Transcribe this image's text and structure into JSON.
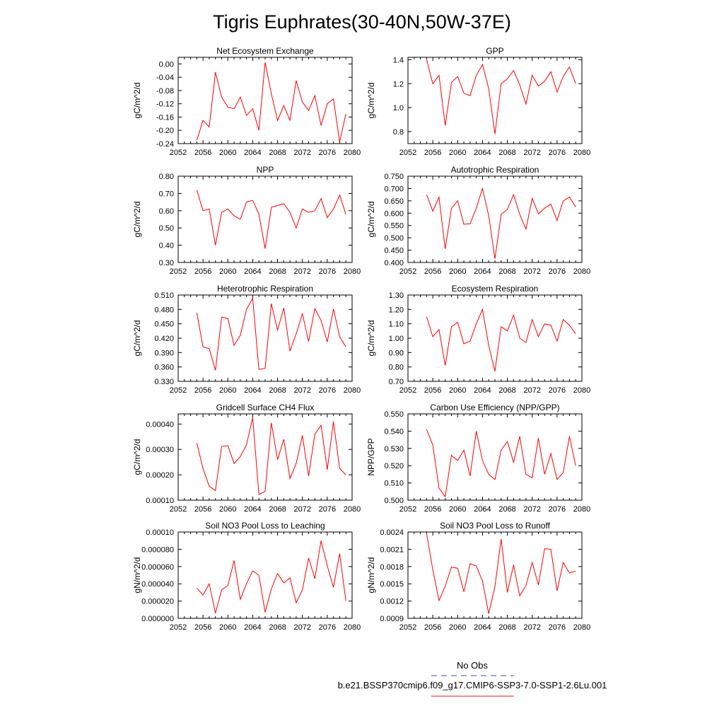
{
  "page_title": "Tigris Euphrates(30-40N,50W-37E)",
  "legend": {
    "entries": [
      {
        "label": "No Obs",
        "color": "#4444cc",
        "style": "dashed"
      },
      {
        "label": "b.e21.BSSP370cmip6.f09_g17.CMIP6-SSP3-7.0-SSP1-2.6Lu.001",
        "color": "#e02020",
        "style": "solid"
      }
    ]
  },
  "series_color": "#ff0000",
  "chart_data": [
    {
      "type": "line",
      "title": "Net Ecosystem Exchange",
      "ylabel": "gC/m^2/d",
      "xlim": [
        2052,
        2080
      ],
      "ylim": [
        -0.24,
        0.02
      ],
      "x_ticks": [
        "2052",
        "2056",
        "2060",
        "2064",
        "2068",
        "2072",
        "2076",
        "2080"
      ],
      "y_ticks": [
        "0.00",
        "-0.04",
        "-0.08",
        "-0.12",
        "-0.16",
        "-0.20",
        "-0.24"
      ],
      "x": [
        2055,
        2056,
        2057,
        2058,
        2059,
        2060,
        2061,
        2062,
        2063,
        2064,
        2065,
        2066,
        2067,
        2068,
        2069,
        2070,
        2071,
        2072,
        2073,
        2074,
        2075,
        2076,
        2077,
        2078,
        2079
      ],
      "y": [
        -0.23,
        -0.17,
        -0.19,
        -0.025,
        -0.1,
        -0.13,
        -0.135,
        -0.1,
        -0.155,
        -0.135,
        -0.2,
        0.005,
        -0.09,
        -0.17,
        -0.125,
        -0.17,
        -0.05,
        -0.115,
        -0.14,
        -0.095,
        -0.185,
        -0.12,
        -0.105,
        -0.235,
        -0.15
      ]
    },
    {
      "type": "line",
      "title": "GPP",
      "ylabel": "gC/m^2/d",
      "xlim": [
        2052,
        2080
      ],
      "ylim": [
        0.7,
        1.42
      ],
      "x_ticks": [
        "2052",
        "2056",
        "2060",
        "2064",
        "2068",
        "2072",
        "2076",
        "2080"
      ],
      "y_ticks": [
        "1.4",
        "1.2",
        "1.0",
        "0.8"
      ],
      "x": [
        2055,
        2056,
        2057,
        2058,
        2059,
        2060,
        2061,
        2062,
        2063,
        2064,
        2065,
        2066,
        2067,
        2068,
        2069,
        2070,
        2071,
        2072,
        2073,
        2074,
        2075,
        2076,
        2077,
        2078,
        2079
      ],
      "y": [
        1.4,
        1.2,
        1.27,
        0.85,
        1.21,
        1.26,
        1.12,
        1.1,
        1.27,
        1.36,
        1.16,
        0.78,
        1.2,
        1.24,
        1.31,
        1.19,
        1.03,
        1.27,
        1.18,
        1.22,
        1.3,
        1.13,
        1.26,
        1.34,
        1.2
      ]
    },
    {
      "type": "line",
      "title": "NPP",
      "ylabel": "gC/m^2/d",
      "xlim": [
        2052,
        2080
      ],
      "ylim": [
        0.3,
        0.8
      ],
      "x_ticks": [
        "2052",
        "2056",
        "2060",
        "2064",
        "2068",
        "2072",
        "2076",
        "2080"
      ],
      "y_ticks": [
        "0.80",
        "0.70",
        "0.60",
        "0.50",
        "0.40",
        "0.30"
      ],
      "x": [
        2055,
        2056,
        2057,
        2058,
        2059,
        2060,
        2061,
        2062,
        2063,
        2064,
        2065,
        2066,
        2067,
        2068,
        2069,
        2070,
        2071,
        2072,
        2073,
        2074,
        2075,
        2076,
        2077,
        2078,
        2079
      ],
      "y": [
        0.72,
        0.6,
        0.61,
        0.4,
        0.59,
        0.61,
        0.57,
        0.55,
        0.65,
        0.66,
        0.58,
        0.38,
        0.62,
        0.63,
        0.64,
        0.59,
        0.5,
        0.61,
        0.59,
        0.6,
        0.67,
        0.56,
        0.61,
        0.69,
        0.58
      ]
    },
    {
      "type": "line",
      "title": "Autotrophic Respiration",
      "ylabel": "gC/m^2/d",
      "xlim": [
        2052,
        2080
      ],
      "ylim": [
        0.4,
        0.75
      ],
      "x_ticks": [
        "2052",
        "2056",
        "2060",
        "2064",
        "2068",
        "2072",
        "2076",
        "2080"
      ],
      "y_ticks": [
        "0.750",
        "0.700",
        "0.650",
        "0.600",
        "0.550",
        "0.500",
        "0.450",
        "0.400"
      ],
      "x": [
        2055,
        2056,
        2057,
        2058,
        2059,
        2060,
        2061,
        2062,
        2063,
        2064,
        2065,
        2066,
        2067,
        2068,
        2069,
        2070,
        2071,
        2072,
        2073,
        2074,
        2075,
        2076,
        2077,
        2078,
        2079
      ],
      "y": [
        0.675,
        0.608,
        0.665,
        0.455,
        0.62,
        0.65,
        0.555,
        0.557,
        0.62,
        0.7,
        0.59,
        0.415,
        0.595,
        0.615,
        0.675,
        0.595,
        0.535,
        0.66,
        0.597,
        0.62,
        0.637,
        0.57,
        0.65,
        0.665,
        0.625
      ]
    },
    {
      "type": "line",
      "title": "Heterotrophic Respiration",
      "ylabel": "gC/m^2/d",
      "xlim": [
        2052,
        2080
      ],
      "ylim": [
        0.33,
        0.51
      ],
      "x_ticks": [
        "2052",
        "2056",
        "2060",
        "2064",
        "2068",
        "2072",
        "2076",
        "2080"
      ],
      "y_ticks": [
        "0.510",
        "0.480",
        "0.450",
        "0.420",
        "0.390",
        "0.360",
        "0.330"
      ],
      "x": [
        2055,
        2056,
        2057,
        2058,
        2059,
        2060,
        2061,
        2062,
        2063,
        2064,
        2065,
        2066,
        2067,
        2068,
        2069,
        2070,
        2071,
        2072,
        2073,
        2074,
        2075,
        2076,
        2077,
        2078,
        2079
      ],
      "y": [
        0.473,
        0.402,
        0.398,
        0.353,
        0.464,
        0.461,
        0.405,
        0.426,
        0.48,
        0.503,
        0.355,
        0.357,
        0.492,
        0.437,
        0.483,
        0.393,
        0.429,
        0.471,
        0.413,
        0.482,
        0.457,
        0.412,
        0.481,
        0.423,
        0.402
      ]
    },
    {
      "type": "line",
      "title": "Ecosystem Respiration",
      "ylabel": "gC/m^2/d",
      "xlim": [
        2052,
        2080
      ],
      "ylim": [
        0.7,
        1.3
      ],
      "x_ticks": [
        "2052",
        "2056",
        "2060",
        "2064",
        "2068",
        "2072",
        "2076",
        "2080"
      ],
      "y_ticks": [
        "1.30",
        "1.20",
        "1.10",
        "1.00",
        "0.90",
        "0.80",
        "0.70"
      ],
      "x": [
        2055,
        2056,
        2057,
        2058,
        2059,
        2060,
        2061,
        2062,
        2063,
        2064,
        2065,
        2066,
        2067,
        2068,
        2069,
        2070,
        2071,
        2072,
        2073,
        2074,
        2075,
        2076,
        2077,
        2078,
        2079
      ],
      "y": [
        1.15,
        1.01,
        1.06,
        0.81,
        1.08,
        1.11,
        0.96,
        0.98,
        1.1,
        1.2,
        0.95,
        0.77,
        1.08,
        1.05,
        1.16,
        1.0,
        0.97,
        1.13,
        1.01,
        1.1,
        1.09,
        0.98,
        1.13,
        1.09,
        1.03
      ]
    },
    {
      "type": "line",
      "title": "Gridcell Surface CH4 Flux",
      "ylabel": "gC/m^2/d",
      "xlim": [
        2052,
        2080
      ],
      "ylim": [
        0.0001,
        0.00044
      ],
      "x_ticks": [
        "2052",
        "2056",
        "2060",
        "2064",
        "2068",
        "2072",
        "2076",
        "2080"
      ],
      "y_ticks": [
        "0.00040",
        "0.00030",
        "0.00020",
        "0.00010"
      ],
      "x": [
        2055,
        2056,
        2057,
        2058,
        2059,
        2060,
        2061,
        2062,
        2063,
        2064,
        2065,
        2066,
        2067,
        2068,
        2069,
        2070,
        2071,
        2072,
        2073,
        2074,
        2075,
        2076,
        2077,
        2078,
        2079
      ],
      "y": [
        0.000325,
        0.000225,
        0.000155,
        0.000138,
        0.000312,
        0.000315,
        0.000245,
        0.000272,
        0.000318,
        0.000425,
        0.000122,
        0.000135,
        0.000405,
        0.00026,
        0.00034,
        0.000185,
        0.000245,
        0.000355,
        0.000195,
        0.00036,
        0.000395,
        0.00022,
        0.00041,
        0.000225,
        0.0002
      ]
    },
    {
      "type": "line",
      "title": "Carbon Use Efficiency (NPP/GPP)",
      "ylabel": "NPP/GPP",
      "xlim": [
        2052,
        2080
      ],
      "ylim": [
        0.5,
        0.55
      ],
      "x_ticks": [
        "2052",
        "2056",
        "2060",
        "2064",
        "2068",
        "2072",
        "2076",
        "2080"
      ],
      "y_ticks": [
        "0.550",
        "0.540",
        "0.530",
        "0.520",
        "0.510",
        "0.500"
      ],
      "x": [
        2055,
        2056,
        2057,
        2058,
        2059,
        2060,
        2061,
        2062,
        2063,
        2064,
        2065,
        2066,
        2067,
        2068,
        2069,
        2070,
        2071,
        2072,
        2073,
        2074,
        2075,
        2076,
        2077,
        2078,
        2079
      ],
      "y": [
        0.541,
        0.532,
        0.507,
        0.502,
        0.526,
        0.523,
        0.529,
        0.514,
        0.54,
        0.523,
        0.515,
        0.512,
        0.529,
        0.534,
        0.522,
        0.537,
        0.515,
        0.513,
        0.536,
        0.515,
        0.527,
        0.512,
        0.516,
        0.537,
        0.52
      ]
    },
    {
      "type": "line",
      "title": "Soil NO3 Pool Loss to Leaching",
      "ylabel": "gN/m^2/d",
      "xlim": [
        2052,
        2080
      ],
      "ylim": [
        0.0,
        0.0001
      ],
      "x_ticks": [
        "2052",
        "2056",
        "2060",
        "2064",
        "2068",
        "2072",
        "2076",
        "2080"
      ],
      "y_ticks": [
        "0.00010",
        "0.000080",
        "0.000060",
        "0.000040",
        "0.000020",
        "0.000000"
      ],
      "x": [
        2055,
        2056,
        2057,
        2058,
        2059,
        2060,
        2061,
        2062,
        2063,
        2064,
        2065,
        2066,
        2067,
        2068,
        2069,
        2070,
        2071,
        2072,
        2073,
        2074,
        2075,
        2076,
        2077,
        2078,
        2079
      ],
      "y": [
        3.5e-05,
        2.7e-05,
        4e-05,
        6e-06,
        3.3e-05,
        3.8e-05,
        6.7e-05,
        2.2e-05,
        4e-05,
        5.5e-05,
        5e-05,
        7e-06,
        3.4e-05,
        5.2e-05,
        4.1e-05,
        4.7e-05,
        1.8e-05,
        3.3e-05,
        7e-05,
        4.6e-05,
        9e-05,
        6.1e-05,
        3.6e-05,
        7.5e-05,
        2e-05
      ]
    },
    {
      "type": "line",
      "title": "Soil NO3 Pool Loss to Runoff",
      "ylabel": "gN/m^2/d",
      "xlim": [
        2052,
        2080
      ],
      "ylim": [
        0.0009,
        0.0024
      ],
      "x_ticks": [
        "2052",
        "2056",
        "2060",
        "2064",
        "2068",
        "2072",
        "2076",
        "2080"
      ],
      "y_ticks": [
        "0.0024",
        "0.0021",
        "0.0018",
        "0.0015",
        "0.0012",
        "0.0009"
      ],
      "x": [
        2055,
        2056,
        2057,
        2058,
        2059,
        2060,
        2061,
        2062,
        2063,
        2064,
        2065,
        2066,
        2067,
        2068,
        2069,
        2070,
        2071,
        2072,
        2073,
        2074,
        2075,
        2076,
        2077,
        2078,
        2079
      ],
      "y": [
        0.00237,
        0.00175,
        0.00121,
        0.00146,
        0.00179,
        0.00177,
        0.00136,
        0.00185,
        0.00181,
        0.00155,
        0.00098,
        0.00145,
        0.00228,
        0.00135,
        0.00183,
        0.00129,
        0.00147,
        0.00187,
        0.00148,
        0.00211,
        0.0021,
        0.00138,
        0.00187,
        0.00169,
        0.00172
      ]
    }
  ]
}
